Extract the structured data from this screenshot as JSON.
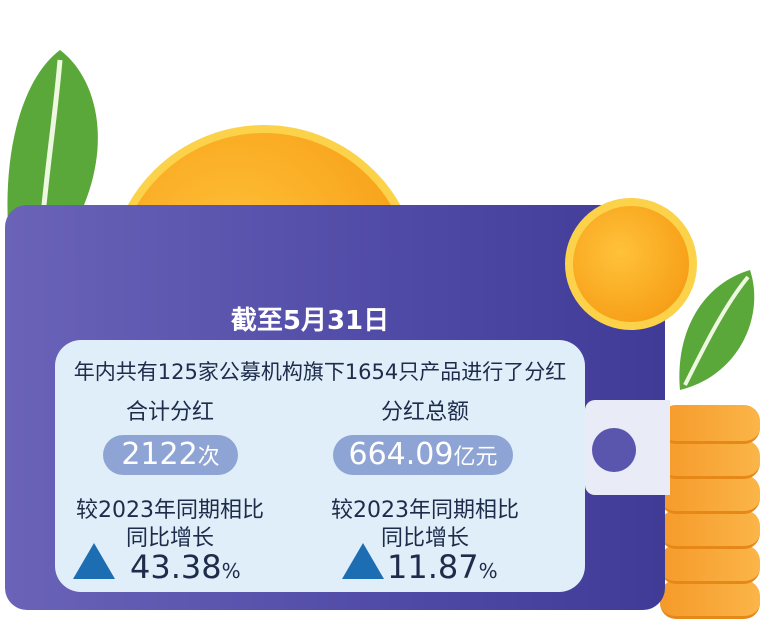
{
  "title": "截至5月31日",
  "summary": "年内共有125家公募机构旗下1654只产品进行了分红",
  "left": {
    "label": "合计分红",
    "value": "2122",
    "unit": "次",
    "compare": "较2023年同期相比",
    "growth_label": "同比增长",
    "growth_value": "43.38",
    "growth_unit": "%"
  },
  "right": {
    "label": "分红总额",
    "value": "664.09",
    "unit": "亿元",
    "compare": "较2023年同期相比",
    "growth_label": "同比增长",
    "growth_value": "11.87",
    "growth_unit": "%"
  },
  "colors": {
    "wallet": "#4f4aa6",
    "panel": "#dfeef8",
    "pill": "#8ea4d4",
    "triangle": "#1d6db3",
    "coin": "#f7a21a",
    "leaf": "#5aa83a"
  },
  "icons": [
    "leaf-icon",
    "coin-icon",
    "wallet-icon",
    "coin-stack-icon",
    "triangle-up-icon"
  ]
}
